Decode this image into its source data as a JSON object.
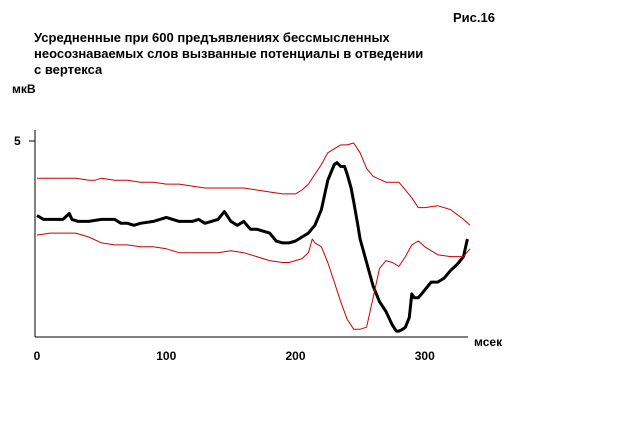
{
  "figure_label": "Рис.16",
  "chart_data": {
    "type": "line",
    "title": "Усредненные при 600 предъявлениях бессмысленных\nнеосознаваемых слов вызванные потенциалы в отведении\nс вертекса",
    "xlabel": "мсек",
    "ylabel": "мкВ",
    "x_ticks": [
      0,
      100,
      200,
      300
    ],
    "y_ticks": [
      5
    ],
    "xlim": [
      0,
      335
    ],
    "ylim": [
      -5.0,
      5.0
    ],
    "grid": false,
    "colors": {
      "mean": "#000000",
      "bounds": "#cc0000"
    },
    "series": [
      {
        "key": "mean",
        "x": [
          0,
          5,
          10,
          20,
          25,
          27,
          32,
          40,
          50,
          60,
          65,
          70,
          75,
          80,
          90,
          100,
          105,
          110,
          115,
          120,
          125,
          130,
          140,
          145,
          150,
          155,
          160,
          165,
          170,
          175,
          180,
          185,
          190,
          195,
          200,
          205,
          210,
          215,
          220,
          225,
          230,
          232,
          235,
          238,
          240,
          243,
          245,
          248,
          250,
          255,
          260,
          265,
          270,
          275,
          278,
          280,
          283,
          285,
          288,
          290,
          292,
          295,
          300,
          305,
          310,
          315,
          320,
          325,
          330,
          333
        ],
        "values": [
          1.2,
          1.0,
          1.0,
          1.0,
          1.3,
          1.0,
          0.9,
          0.9,
          1.0,
          1.0,
          0.8,
          0.8,
          0.7,
          0.8,
          0.9,
          1.1,
          1.0,
          0.9,
          0.9,
          0.9,
          1.0,
          0.8,
          1.0,
          1.4,
          0.9,
          0.7,
          0.9,
          0.5,
          0.5,
          0.4,
          0.3,
          -0.1,
          -0.2,
          -0.2,
          -0.1,
          0.1,
          0.3,
          0.7,
          1.5,
          3.0,
          3.8,
          3.9,
          3.7,
          3.7,
          3.3,
          2.6,
          1.9,
          0.8,
          0.0,
          -1.2,
          -2.4,
          -3.2,
          -3.7,
          -4.4,
          -4.7,
          -4.7,
          -4.6,
          -4.5,
          -4.0,
          -2.8,
          -3.0,
          -3.0,
          -2.6,
          -2.2,
          -2.2,
          -2.0,
          -1.6,
          -1.3,
          -0.9,
          0.0
        ]
      },
      {
        "key": "upper",
        "x": [
          0,
          10,
          20,
          30,
          40,
          45,
          50,
          60,
          70,
          80,
          90,
          100,
          110,
          120,
          130,
          140,
          150,
          160,
          170,
          180,
          190,
          200,
          205,
          210,
          215,
          220,
          225,
          230,
          235,
          240,
          245,
          250,
          255,
          260,
          270,
          280,
          290,
          295,
          300,
          310,
          320,
          330,
          335
        ],
        "values": [
          3.1,
          3.1,
          3.1,
          3.1,
          3.0,
          3.0,
          3.1,
          3.0,
          3.0,
          2.9,
          2.9,
          2.8,
          2.8,
          2.7,
          2.6,
          2.6,
          2.6,
          2.6,
          2.5,
          2.4,
          2.3,
          2.3,
          2.5,
          2.8,
          3.3,
          3.8,
          4.4,
          4.6,
          4.8,
          4.8,
          4.9,
          4.4,
          3.6,
          3.2,
          2.9,
          2.9,
          2.1,
          1.6,
          1.6,
          1.7,
          1.5,
          1.0,
          0.7
        ]
      },
      {
        "key": "lower",
        "x": [
          0,
          10,
          20,
          30,
          40,
          50,
          60,
          70,
          80,
          90,
          100,
          110,
          120,
          130,
          140,
          150,
          160,
          170,
          180,
          190,
          195,
          200,
          205,
          210,
          213,
          215,
          220,
          225,
          230,
          235,
          240,
          245,
          250,
          255,
          260,
          265,
          270,
          275,
          280,
          285,
          290,
          295,
          300,
          310,
          320,
          330,
          335
        ],
        "values": [
          0.2,
          0.3,
          0.3,
          0.3,
          0.1,
          -0.2,
          -0.3,
          -0.3,
          -0.4,
          -0.4,
          -0.5,
          -0.7,
          -0.7,
          -0.7,
          -0.7,
          -0.6,
          -0.7,
          -0.9,
          -1.1,
          -1.2,
          -1.2,
          -1.1,
          -1.0,
          -0.7,
          0.0,
          -0.2,
          -0.4,
          -1.2,
          -2.2,
          -3.2,
          -4.1,
          -4.6,
          -4.6,
          -4.5,
          -3.0,
          -1.5,
          -1.1,
          -1.2,
          -1.4,
          -0.9,
          -0.3,
          -0.1,
          -0.4,
          -0.8,
          -0.9,
          -0.9,
          -0.5
        ]
      }
    ]
  }
}
